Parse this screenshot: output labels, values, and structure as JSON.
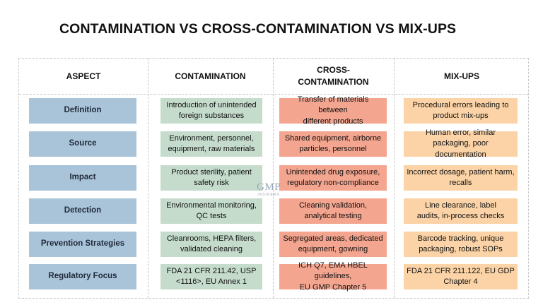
{
  "title": "CONTAMINATION VS CROSS-CONTAMINATION VS MIX-UPS",
  "headers": {
    "aspect": "ASPECT",
    "contamination": "CONTAMINATION",
    "cross_line1": "CROSS-",
    "cross_line2": "CONTAMINATION",
    "mixups": "MIX-UPS"
  },
  "rows": [
    {
      "aspect": "Definition",
      "contamination": [
        "Introduction of unintended",
        "foreign substances"
      ],
      "cross": [
        "Transfer of materials between",
        "different products"
      ],
      "mixups": [
        "Procedural errors leading to",
        "product mix-ups"
      ]
    },
    {
      "aspect": "Source",
      "contamination": [
        "Environment, personnel,",
        "equipment, raw materials"
      ],
      "cross": [
        "Shared equipment, airborne",
        "particles, personnel"
      ],
      "mixups": [
        "Human error, similar",
        "packaging, poor documentation"
      ]
    },
    {
      "aspect": "Impact",
      "contamination": [
        "Product sterility, patient",
        "safety risk"
      ],
      "cross": [
        "Unintended drug exposure,",
        "regulatory non-compliance"
      ],
      "mixups": [
        "Incorrect dosage, patient harm,",
        "recalls"
      ]
    },
    {
      "aspect": "Detection",
      "contamination": [
        "Environmental monitoring,",
        "QC tests"
      ],
      "cross": [
        "Cleaning validation,",
        "analytical testing"
      ],
      "mixups": [
        "Line clearance, label",
        "audits, in-process checks"
      ]
    },
    {
      "aspect": "Prevention Strategies",
      "contamination": [
        "Cleanrooms, HEPA filters,",
        "validated cleaning"
      ],
      "cross": [
        "Segregated areas, dedicated",
        "equipment, gowning"
      ],
      "mixups": [
        "Barcode tracking, unique",
        "packaging, robust SOPs"
      ]
    },
    {
      "aspect": "Regulatory Focus",
      "contamination": [
        "FDA 21 CFR 211.42, USP",
        "<1116>, EU Annex 1"
      ],
      "cross": [
        "ICH Q7, EMA HBEL guidelines,",
        "EU GMP Chapter 5"
      ],
      "mixups": [
        "FDA 21 CFR 211.122, EU GDP",
        "Chapter 4"
      ]
    }
  ],
  "watermark": {
    "main": "GMP",
    "sub": "INSIDERS"
  },
  "colors": {
    "aspect": "#a9c3d8",
    "contamination": "#c5dccc",
    "cross": "#f4a58f",
    "mixups": "#fbd3a6"
  }
}
